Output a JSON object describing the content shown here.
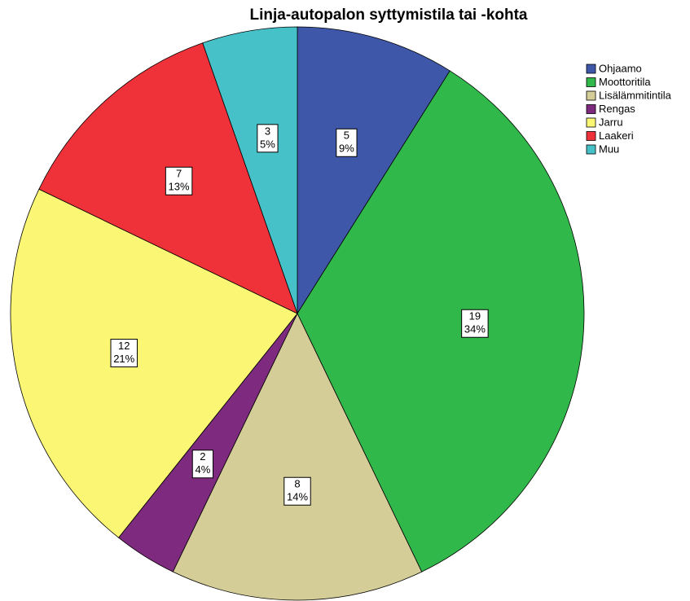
{
  "chart_data": {
    "type": "pie",
    "title": "Linja-autopalon syttymistila tai -kohta",
    "categories": [
      "Ohjaamo",
      "Moottoritila",
      "Lisälämmitintila",
      "Rengas",
      "Jarru",
      "Laakeri",
      "Muu"
    ],
    "values": [
      5,
      19,
      8,
      2,
      12,
      7,
      3
    ],
    "percent_labels": [
      "9%",
      "34%",
      "14%",
      "4%",
      "21%",
      "13%",
      "5%"
    ],
    "colors": [
      "#3f57a9",
      "#30b84a",
      "#d4cd97",
      "#7e2a7e",
      "#fbf774",
      "#ef3239",
      "#47c1c8"
    ],
    "legend": "upper right"
  }
}
